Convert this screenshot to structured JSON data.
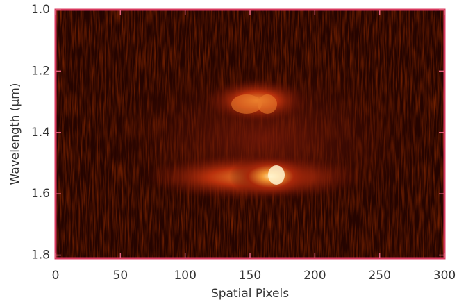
{
  "chart_data": {
    "type": "image",
    "xlabel": "Spatial Pixels",
    "ylabel": "Wavelength (μm)",
    "xlim": [
      0,
      300
    ],
    "xticks": [
      0,
      50,
      100,
      150,
      200,
      250,
      300
    ],
    "ylim": [
      1.0,
      1.81
    ],
    "yticks": [
      {
        "value": 1.0,
        "label": "1.0"
      },
      1.2,
      1.4,
      1.6,
      1.8
    ],
    "frame_color": "#d8385e"
  }
}
